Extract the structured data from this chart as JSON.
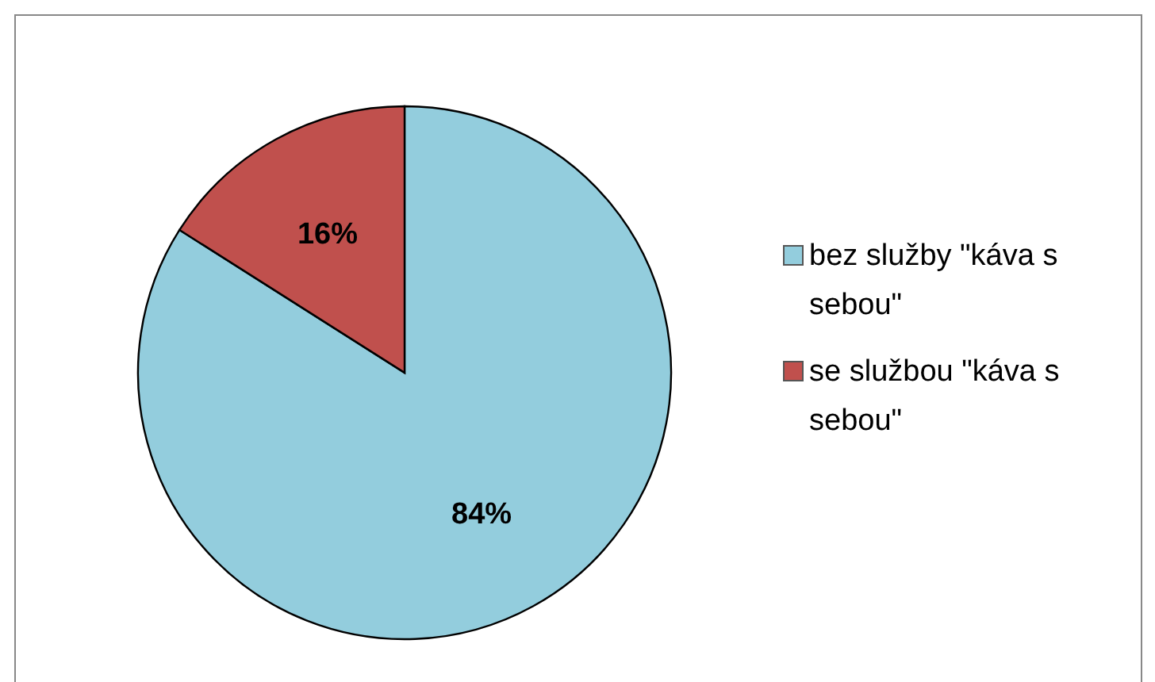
{
  "chart_data": {
    "type": "pie",
    "categories": [
      "bez služby \"káva s sebou\"",
      "se službou \"káva s sebou\""
    ],
    "values": [
      84,
      16
    ],
    "colors": [
      "#93cddd",
      "#c0504d"
    ],
    "value_labels": [
      "84%",
      "16%"
    ],
    "legend": "right"
  }
}
